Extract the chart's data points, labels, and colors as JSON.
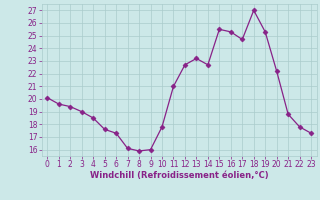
{
  "x": [
    0,
    1,
    2,
    3,
    4,
    5,
    6,
    7,
    8,
    9,
    10,
    11,
    12,
    13,
    14,
    15,
    16,
    17,
    18,
    19,
    20,
    21,
    22,
    23
  ],
  "y": [
    20.1,
    19.6,
    19.4,
    19.0,
    18.5,
    17.6,
    17.3,
    16.1,
    15.9,
    16.0,
    17.8,
    21.0,
    22.7,
    23.2,
    22.7,
    25.5,
    25.3,
    24.7,
    27.0,
    25.3,
    22.2,
    18.8,
    17.8,
    17.3
  ],
  "line_color": "#882288",
  "marker": "D",
  "marker_size": 2.5,
  "bg_color": "#cce8e8",
  "grid_color": "#aacccc",
  "xlabel": "Windchill (Refroidissement éolien,°C)",
  "ylim": [
    15.5,
    27.5
  ],
  "yticks": [
    16,
    17,
    18,
    19,
    20,
    21,
    22,
    23,
    24,
    25,
    26,
    27
  ],
  "xticks": [
    0,
    1,
    2,
    3,
    4,
    5,
    6,
    7,
    8,
    9,
    10,
    11,
    12,
    13,
    14,
    15,
    16,
    17,
    18,
    19,
    20,
    21,
    22,
    23
  ],
  "tick_color": "#882288",
  "xlabel_color": "#882288",
  "tick_fontsize": 5.5,
  "xlabel_fontsize": 6.0
}
